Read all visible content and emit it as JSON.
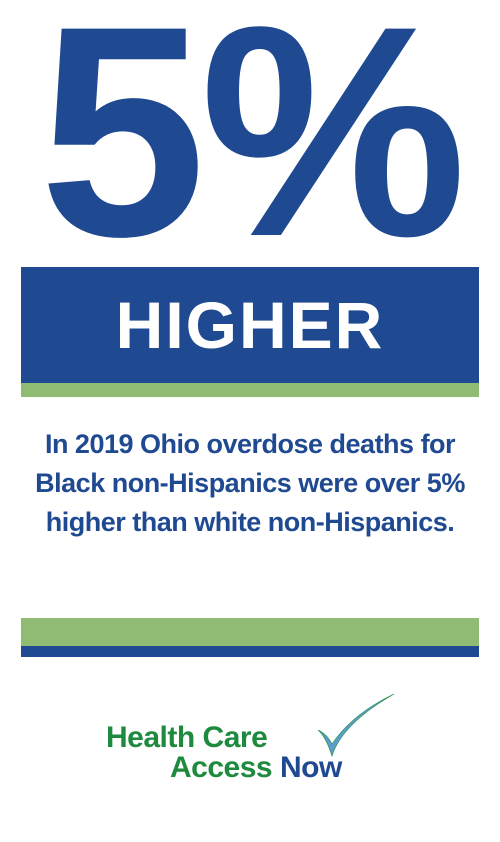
{
  "stat": {
    "value": "5%",
    "label": "HIGHER"
  },
  "description": "In 2019 Ohio overdose deaths for Black non-Hispanics were over 5% higher than white non-Hispanics.",
  "logo": {
    "line1_word1": "Health",
    "line1_word2_first": "C",
    "line1_word2_rest": "are",
    "line2_word1_first": "A",
    "line2_word1_rest": "ccess",
    "line2_word2_first": "N",
    "line2_word2_rest": "ow",
    "icon": "checkmark-icon"
  },
  "colors": {
    "navy": "#1f4a91",
    "green_strip": "#8fbc72",
    "logo_green": "#1d8a3e",
    "logo_blue": "#1f4a91",
    "background": "#ffffff"
  }
}
